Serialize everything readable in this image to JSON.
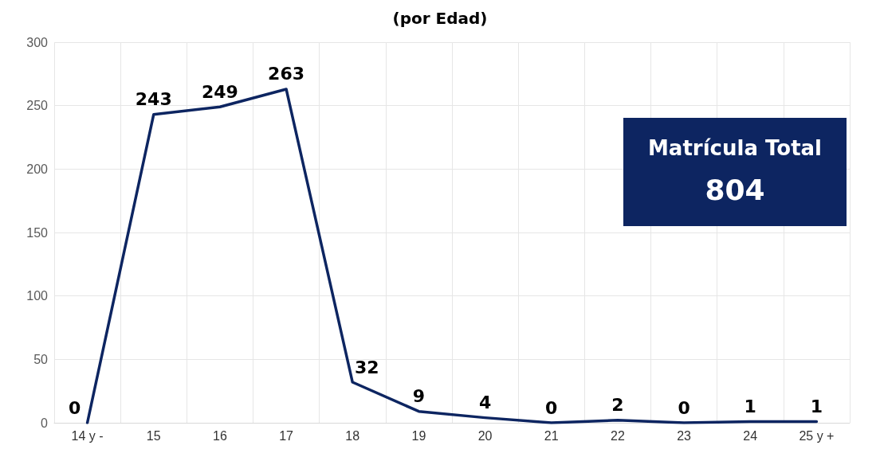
{
  "chart_data": {
    "type": "line",
    "title": "(por Edad)",
    "categories": [
      "14 y -",
      "15",
      "16",
      "17",
      "18",
      "19",
      "20",
      "21",
      "22",
      "23",
      "24",
      "25 y +"
    ],
    "values": [
      0,
      243,
      249,
      263,
      32,
      9,
      4,
      0,
      2,
      0,
      1,
      1
    ],
    "color": "#0d2561",
    "ylim": [
      0,
      300
    ],
    "yticks": [
      0,
      50,
      100,
      150,
      200,
      250,
      300
    ],
    "grid": true,
    "marker": "none",
    "line_style": "solid",
    "data_labels": true,
    "annotations": [
      "Matrícula Total",
      "804"
    ]
  }
}
